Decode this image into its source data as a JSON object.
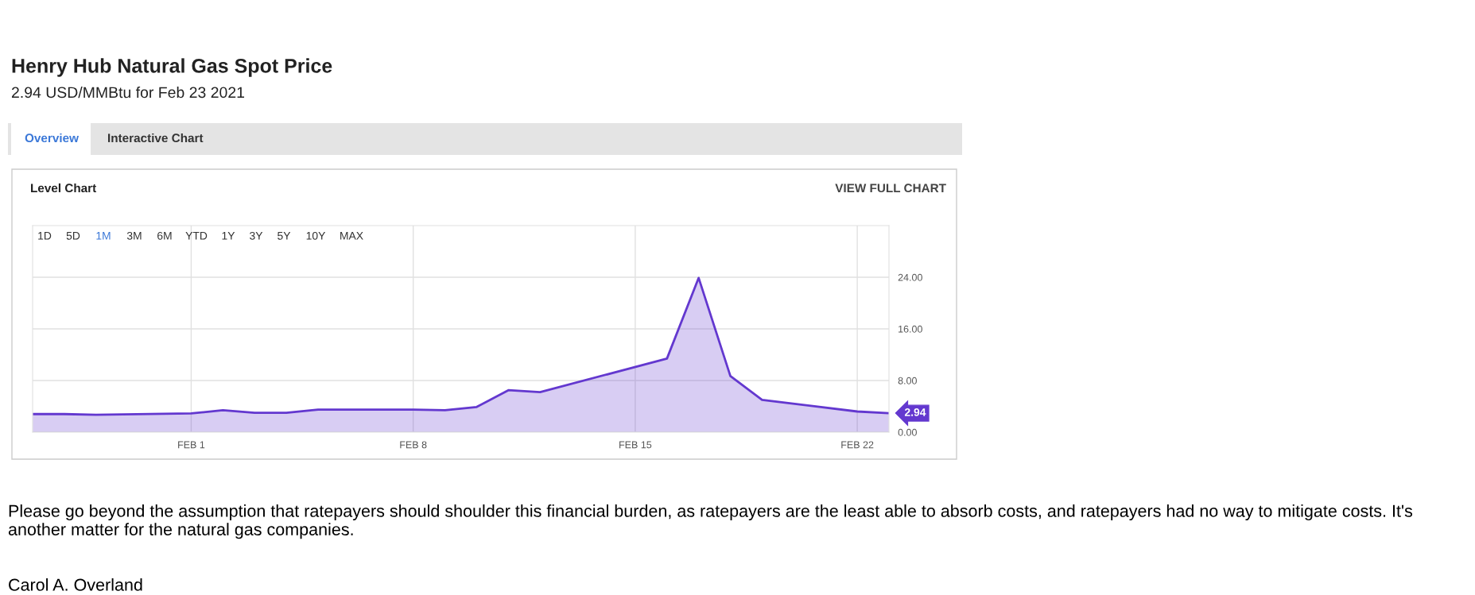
{
  "chart_data": {
    "type": "area",
    "title": "Henry Hub Natural Gas Spot Price",
    "subtitle": "2.94 USD/MMBtu for Feb 23 2021",
    "x": [
      "2021-01-27",
      "2021-01-28",
      "2021-01-29",
      "2021-02-01",
      "2021-02-02",
      "2021-02-03",
      "2021-02-04",
      "2021-02-05",
      "2021-02-08",
      "2021-02-09",
      "2021-02-10",
      "2021-02-11",
      "2021-02-12",
      "2021-02-16",
      "2021-02-17",
      "2021-02-18",
      "2021-02-19",
      "2021-02-22",
      "2021-02-23"
    ],
    "series": [
      {
        "color": "#6338cf",
        "values": [
          2.8,
          2.8,
          2.7,
          2.9,
          3.4,
          3.0,
          3.0,
          3.5,
          3.5,
          3.4,
          3.9,
          6.5,
          6.2,
          11.4,
          23.9,
          8.7,
          5.0,
          3.2,
          2.94
        ],
        "value_labels": [
          null,
          null,
          null,
          null,
          null,
          null,
          null,
          null,
          null,
          null,
          null,
          null,
          null,
          null,
          null,
          null,
          null,
          null,
          "2.94"
        ]
      }
    ],
    "xlim": [
      "2021-01-27",
      "2021-02-23"
    ],
    "xticks": [
      {
        "value": "2021-02-01",
        "label": "FEB 1"
      },
      {
        "value": "2021-02-08",
        "label": "FEB 8"
      },
      {
        "value": "2021-02-15",
        "label": "FEB 15"
      },
      {
        "value": "2021-02-22",
        "label": "FEB 22"
      }
    ],
    "ylim": [
      0,
      32
    ],
    "yticks": [
      {
        "value": 0,
        "label": "0.00"
      },
      {
        "value": 8,
        "label": "8.00"
      },
      {
        "value": 16,
        "label": "16.00"
      },
      {
        "value": 24,
        "label": "24.00"
      }
    ],
    "grid": true,
    "legend": false,
    "annotations": [
      "Overview",
      "Interactive Chart",
      "Level Chart",
      "VIEW FULL CHART",
      "1D",
      "5D",
      "1M",
      "3M",
      "6M",
      "YTD",
      "1Y",
      "3Y",
      "5Y",
      "10Y",
      "MAX",
      "Please go beyond the assumption that ratepayers should shoulder this financial burden, as ratepayers are the least able to absorb costs, and ratepayers had no way to mitigate costs. It's another matter for the natural gas companies.",
      "Carol A. Overland"
    ]
  }
}
